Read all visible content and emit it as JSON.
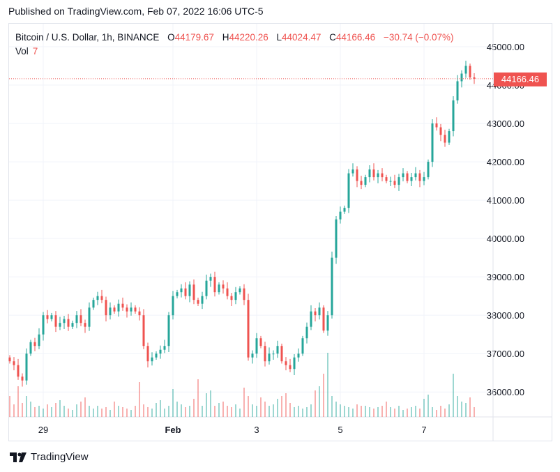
{
  "header": {
    "published": "Published on TradingView.com, Feb 07, 2022 16:06 UTC-5"
  },
  "legend": {
    "symbol": "Bitcoin / U.S. Dollar, 1h, BINANCE",
    "open_label": "O",
    "open": "44179.67",
    "high_label": "H",
    "high": "44220.26",
    "low_label": "L",
    "low": "44024.47",
    "close_label": "C",
    "close": "44166.46",
    "change": "−30.74 (−0.07%)",
    "vol_label": "Vol",
    "vol": "7"
  },
  "last_price": "44166.46",
  "footer": {
    "brand": "TradingView"
  },
  "colors": {
    "up": "#26a69a",
    "down": "#ef5350",
    "grid": "#f0f3fa",
    "text": "#131722",
    "border": "#e0e3eb"
  },
  "chart_data": {
    "type": "candlestick",
    "interval": "1h",
    "y_ticks": [
      "45000.00",
      "44000.00",
      "43000.00",
      "42000.00",
      "41000.00",
      "40000.00",
      "39000.00",
      "38000.00",
      "37000.00",
      "36000.00"
    ],
    "ylim": [
      35350,
      45600
    ],
    "x_ticks": [
      {
        "label": "29",
        "bar": 8
      },
      {
        "label": "Feb",
        "bar": 39
      },
      {
        "label": "3",
        "bar": 59
      },
      {
        "label": "5",
        "bar": 79
      },
      {
        "label": "7",
        "bar": 99
      }
    ],
    "closes": [
      36800,
      36700,
      36400,
      36300,
      37000,
      37300,
      37200,
      37500,
      38000,
      37900,
      38000,
      37700,
      37800,
      37900,
      37700,
      37800,
      38000,
      37800,
      37700,
      38200,
      38400,
      38500,
      38400,
      38000,
      38200,
      38100,
      38300,
      38200,
      38100,
      38200,
      38100,
      38000,
      37200,
      36800,
      36900,
      37000,
      37100,
      37200,
      38000,
      38500,
      38600,
      38700,
      38500,
      38800,
      38400,
      38300,
      38500,
      38900,
      39000,
      38600,
      38800,
      38700,
      38500,
      38400,
      38600,
      38700,
      38400,
      36900,
      37000,
      37400,
      37200,
      36800,
      37000,
      37000,
      37200,
      36800,
      36700,
      36600,
      36900,
      37000,
      37400,
      37700,
      38100,
      38000,
      38200,
      37600,
      38000,
      39500,
      40500,
      40700,
      40800,
      41700,
      41800,
      41500,
      41400,
      41600,
      41800,
      41600,
      41700,
      41600,
      41500,
      41500,
      41400,
      41600,
      41700,
      41500,
      41600,
      41700,
      41500,
      41600,
      42000,
      43000,
      42900,
      42700,
      42500,
      42800,
      43600,
      44100,
      44300,
      44500,
      44200,
      44166
    ]
  },
  "volume_data": [
    30,
    18,
    44,
    20,
    30,
    22,
    14,
    16,
    12,
    18,
    14,
    20,
    24,
    16,
    12,
    10,
    18,
    22,
    28,
    16,
    12,
    16,
    12,
    14,
    10,
    22,
    16,
    14,
    12,
    10,
    16,
    50,
    18,
    14,
    12,
    20,
    24,
    12,
    16,
    40,
    22,
    18,
    14,
    16,
    26,
    54,
    16,
    34,
    38,
    16,
    20,
    22,
    16,
    14,
    18,
    12,
    42,
    30,
    18,
    16,
    28,
    22,
    16,
    18,
    26,
    30,
    34,
    20,
    14,
    16,
    12,
    14,
    18,
    38,
    44,
    62,
    92,
    30,
    22,
    18,
    16,
    14,
    12,
    18,
    16,
    16,
    14,
    12,
    14,
    16,
    22,
    14,
    12,
    16,
    10,
    12,
    14,
    16,
    12,
    26,
    32,
    14,
    10,
    16,
    12,
    18,
    62,
    30,
    22,
    20,
    28,
    14
  ]
}
